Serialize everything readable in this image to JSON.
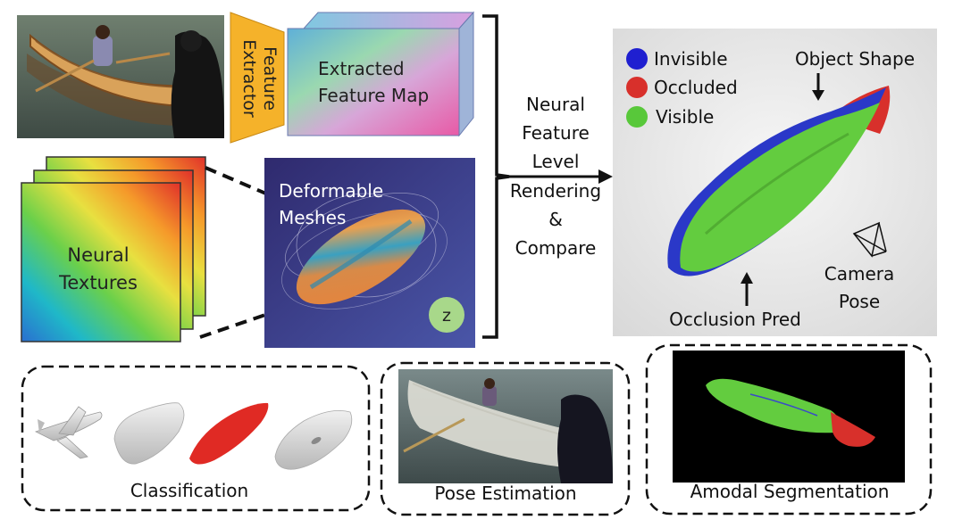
{
  "feature_extractor": {
    "label_line1": "Feature",
    "label_line2": "Extractor"
  },
  "feature_map": {
    "label_line1": "Extracted",
    "label_line2": "Feature Map"
  },
  "neural_textures": {
    "label_line1": "Neural",
    "label_line2": "Textures"
  },
  "deformable_meshes": {
    "label_line1": "Deformable",
    "label_line2": "Meshes",
    "latent_symbol": "z"
  },
  "render_step": {
    "lines": [
      "Neural",
      "Feature",
      "Level",
      "Rendering",
      "&",
      "Compare"
    ]
  },
  "result": {
    "legend": [
      {
        "label": "Invisible",
        "color": "#1f1fd0"
      },
      {
        "label": "Occluded",
        "color": "#d8302b"
      },
      {
        "label": "Visible",
        "color": "#58c83a"
      }
    ],
    "object_shape_label": "Object Shape",
    "occlusion_label": "Occlusion Pred",
    "camera_label_line1": "Camera",
    "camera_label_line2": "Pose"
  },
  "tasks": {
    "classification": "Classification",
    "pose_estimation": "Pose Estimation",
    "amodal_segmentation": "Amodal Segmentation"
  },
  "colors": {
    "extractor_fill": "#f5b22a",
    "mesh_bg": "#3b3d8c",
    "result_bg": "#e9e9e9",
    "visible_green": "#63cc3f",
    "occluded_red": "#d8302b",
    "invisible_blue": "#2233cc"
  }
}
